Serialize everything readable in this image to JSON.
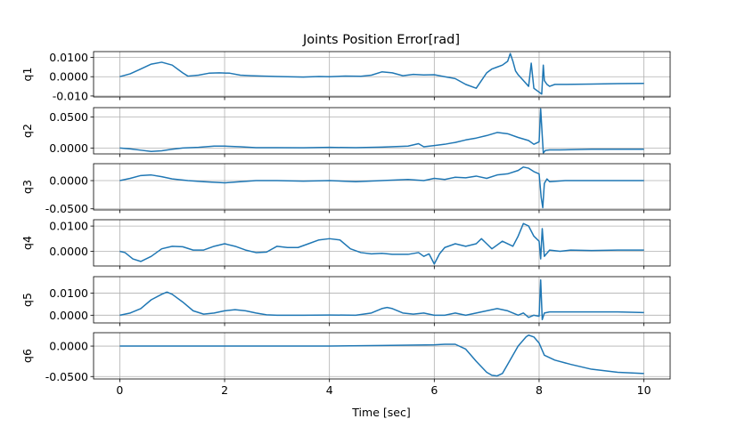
{
  "chart_data": {
    "type": "line",
    "title": "Joints Position Error[rad]",
    "xlabel": "Time [sec]",
    "xlim": [
      -0.5,
      10.5
    ],
    "xticks": [
      0,
      2,
      4,
      6,
      8,
      10
    ],
    "xtick_labels": [
      "0",
      "2",
      "4",
      "6",
      "8",
      "10"
    ],
    "grid": true,
    "color": "#1f77b4",
    "subplots": [
      {
        "ylabel": "q1",
        "ylim": [
          -0.0105,
          0.013
        ],
        "yticks": [
          -0.01,
          0.0,
          0.01
        ],
        "ytick_labels": [
          "-0.010",
          "0.0000",
          "0.0100"
        ],
        "x": [
          0,
          0.2,
          0.4,
          0.6,
          0.8,
          1.0,
          1.2,
          1.3,
          1.5,
          1.7,
          1.9,
          2.1,
          2.3,
          2.5,
          2.7,
          3.0,
          3.2,
          3.5,
          3.8,
          4.0,
          4.3,
          4.6,
          4.8,
          5.0,
          5.2,
          5.4,
          5.6,
          5.8,
          6.0,
          6.2,
          6.4,
          6.6,
          6.8,
          6.9,
          7.0,
          7.1,
          7.2,
          7.3,
          7.4,
          7.45,
          7.5,
          7.55,
          7.6,
          7.7,
          7.8,
          7.85,
          7.9,
          8.0,
          8.05,
          8.08,
          8.1,
          8.15,
          8.2,
          8.3,
          8.5,
          9.0,
          9.5,
          10.0
        ],
        "y": [
          0.0,
          0.0015,
          0.004,
          0.0065,
          0.0075,
          0.006,
          0.002,
          0.0003,
          0.0008,
          0.0018,
          0.002,
          0.0018,
          0.0008,
          0.0005,
          0.0003,
          0.0001,
          0.0,
          -0.0002,
          0.0001,
          0.0,
          0.0003,
          0.0002,
          0.0008,
          0.0025,
          0.002,
          0.0005,
          0.0012,
          0.0009,
          0.001,
          0.0,
          -0.001,
          -0.004,
          -0.006,
          -0.002,
          0.002,
          0.004,
          0.005,
          0.006,
          0.008,
          0.012,
          0.008,
          0.003,
          0.001,
          -0.002,
          -0.005,
          0.007,
          -0.006,
          -0.008,
          -0.009,
          0.006,
          -0.002,
          -0.004,
          -0.005,
          -0.004,
          -0.004,
          -0.0038,
          -0.0036,
          -0.0035
        ]
      },
      {
        "ylabel": "q2",
        "ylim": [
          -0.0095,
          0.065
        ],
        "yticks": [
          0.0,
          0.05
        ],
        "ytick_labels": [
          "0.0000",
          "0.0500"
        ],
        "x": [
          0,
          0.2,
          0.4,
          0.6,
          0.8,
          1.0,
          1.2,
          1.5,
          1.8,
          2.0,
          2.3,
          2.6,
          3.0,
          3.5,
          4.0,
          4.5,
          5.0,
          5.5,
          5.7,
          5.8,
          6.0,
          6.2,
          6.4,
          6.6,
          6.8,
          7.0,
          7.2,
          7.4,
          7.6,
          7.8,
          7.9,
          8.0,
          8.03,
          8.06,
          8.08,
          8.12,
          8.2,
          8.4,
          9.0,
          9.5,
          10.0
        ],
        "y": [
          0.0,
          -0.0015,
          -0.0035,
          -0.0055,
          -0.0045,
          -0.002,
          0.0,
          0.001,
          0.003,
          0.003,
          0.002,
          0.0005,
          0.0005,
          0.0003,
          0.001,
          0.0005,
          0.0015,
          0.003,
          0.007,
          0.002,
          0.004,
          0.006,
          0.009,
          0.013,
          0.016,
          0.02,
          0.025,
          0.023,
          0.017,
          0.012,
          0.006,
          0.01,
          0.063,
          0.02,
          -0.008,
          -0.004,
          -0.003,
          -0.003,
          -0.002,
          -0.002,
          -0.002
        ]
      },
      {
        "ylabel": "q3",
        "ylim": [
          -0.052,
          0.03
        ],
        "yticks": [
          -0.05,
          0.0
        ],
        "ytick_labels": [
          "-0.0500",
          "0.0000"
        ],
        "x": [
          0,
          0.2,
          0.4,
          0.6,
          0.8,
          1.0,
          1.3,
          1.6,
          2.0,
          2.3,
          2.6,
          3.0,
          3.5,
          4.0,
          4.5,
          5.0,
          5.5,
          5.8,
          6.0,
          6.2,
          6.4,
          6.6,
          6.8,
          7.0,
          7.2,
          7.4,
          7.6,
          7.7,
          7.8,
          7.9,
          8.0,
          8.04,
          8.07,
          8.1,
          8.15,
          8.2,
          8.5,
          9.0,
          9.5,
          10.0
        ],
        "y": [
          0.0,
          0.004,
          0.009,
          0.01,
          0.007,
          0.003,
          0.0,
          -0.002,
          -0.004,
          -0.002,
          0.0,
          0.0,
          -0.001,
          0.0,
          -0.002,
          0.0,
          0.002,
          0.0,
          0.004,
          0.002,
          0.006,
          0.005,
          0.008,
          0.004,
          0.01,
          0.012,
          0.018,
          0.024,
          0.022,
          0.016,
          0.012,
          -0.03,
          -0.048,
          -0.005,
          0.003,
          -0.002,
          0.0,
          0.0,
          0.0,
          0.0
        ]
      },
      {
        "ylabel": "q4",
        "ylim": [
          -0.0058,
          0.0125
        ],
        "yticks": [
          0.0,
          0.01
        ],
        "ytick_labels": [
          "0.0000",
          "0.0100"
        ],
        "x": [
          0,
          0.1,
          0.25,
          0.4,
          0.6,
          0.8,
          1.0,
          1.2,
          1.4,
          1.6,
          1.8,
          2.0,
          2.2,
          2.4,
          2.6,
          2.8,
          3.0,
          3.2,
          3.4,
          3.6,
          3.8,
          4.0,
          4.2,
          4.4,
          4.6,
          4.8,
          5.0,
          5.2,
          5.5,
          5.7,
          5.8,
          5.9,
          6.0,
          6.1,
          6.2,
          6.4,
          6.6,
          6.8,
          6.9,
          7.0,
          7.1,
          7.3,
          7.5,
          7.6,
          7.7,
          7.8,
          7.9,
          8.0,
          8.03,
          8.06,
          8.1,
          8.2,
          8.4,
          8.6,
          9.0,
          9.5,
          10.0
        ],
        "y": [
          0.0,
          -0.0005,
          -0.003,
          -0.004,
          -0.002,
          0.001,
          0.002,
          0.0018,
          0.0005,
          0.0005,
          0.002,
          0.003,
          0.002,
          0.0005,
          -0.0005,
          -0.0003,
          0.002,
          0.0015,
          0.0015,
          0.003,
          0.0045,
          0.005,
          0.0045,
          0.001,
          -0.0005,
          -0.001,
          -0.0008,
          -0.0012,
          -0.0012,
          -0.0005,
          -0.002,
          -0.001,
          -0.005,
          -0.001,
          0.0015,
          0.003,
          0.002,
          0.003,
          0.005,
          0.003,
          0.001,
          0.004,
          0.002,
          0.006,
          0.011,
          0.01,
          0.006,
          0.004,
          -0.003,
          0.009,
          -0.002,
          0.0005,
          0.0,
          0.0005,
          0.0003,
          0.0005,
          0.0005
        ]
      },
      {
        "ylabel": "q5",
        "ylim": [
          -0.0035,
          0.0175
        ],
        "yticks": [
          0.0,
          0.01
        ],
        "ytick_labels": [
          "0.0000",
          "0.0100"
        ],
        "x": [
          0,
          0.2,
          0.4,
          0.6,
          0.8,
          0.9,
          1.0,
          1.2,
          1.4,
          1.6,
          1.8,
          2.0,
          2.2,
          2.4,
          2.6,
          2.8,
          3.0,
          3.5,
          4.0,
          4.5,
          4.8,
          5.0,
          5.1,
          5.2,
          5.4,
          5.6,
          5.8,
          6.0,
          6.2,
          6.4,
          6.6,
          6.8,
          7.0,
          7.2,
          7.4,
          7.6,
          7.7,
          7.8,
          7.9,
          8.0,
          8.03,
          8.06,
          8.1,
          8.2,
          8.5,
          9.0,
          9.5,
          10.0
        ],
        "y": [
          0.0,
          0.001,
          0.003,
          0.007,
          0.0095,
          0.0105,
          0.0095,
          0.006,
          0.002,
          0.0005,
          0.001,
          0.002,
          0.0025,
          0.002,
          0.001,
          0.0002,
          0.0,
          0.0,
          0.0001,
          0.0,
          0.001,
          0.003,
          0.0035,
          0.003,
          0.001,
          0.0005,
          0.001,
          0.0,
          0.0,
          0.001,
          0.0,
          0.001,
          0.002,
          0.003,
          0.002,
          0.0,
          0.001,
          -0.001,
          0.0,
          -0.0005,
          0.016,
          -0.002,
          0.001,
          0.0015,
          0.0015,
          0.0015,
          0.0015,
          0.0012
        ]
      },
      {
        "ylabel": "q6",
        "ylim": [
          -0.054,
          0.022
        ],
        "yticks": [
          -0.05,
          0.0
        ],
        "ytick_labels": [
          "-0.0500",
          "0.0000"
        ],
        "x": [
          0,
          1.0,
          2.0,
          3.0,
          4.0,
          5.0,
          6.0,
          6.2,
          6.4,
          6.6,
          6.8,
          7.0,
          7.1,
          7.2,
          7.3,
          7.4,
          7.6,
          7.75,
          7.8,
          7.9,
          8.0,
          8.1,
          8.3,
          8.6,
          9.0,
          9.5,
          10.0
        ],
        "y": [
          0.0,
          0.0,
          0.0,
          0.0,
          0.0,
          0.001,
          0.002,
          0.003,
          0.003,
          -0.005,
          -0.025,
          -0.043,
          -0.048,
          -0.049,
          -0.045,
          -0.03,
          0.0,
          0.015,
          0.018,
          0.015,
          0.005,
          -0.015,
          -0.023,
          -0.03,
          -0.038,
          -0.043,
          -0.045
        ]
      }
    ]
  }
}
